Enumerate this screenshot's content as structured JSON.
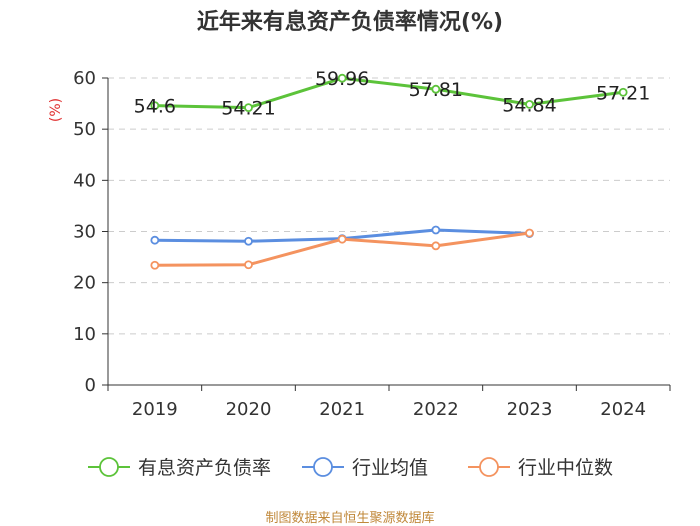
{
  "chart_data": {
    "type": "line",
    "title": "近年来有息资产负债率情况(%)",
    "ylabel": "(%)",
    "xlabel": "",
    "ylim": [
      0,
      60
    ],
    "yticks": [
      0,
      10,
      20,
      30,
      40,
      50,
      60
    ],
    "grid": true,
    "legend_position": "bottom",
    "categories": [
      "2019",
      "2020",
      "2021",
      "2022",
      "2023",
      "2024"
    ],
    "series": [
      {
        "name": "有息资产负债率",
        "color": "#5cc33a",
        "values": [
          54.6,
          54.21,
          59.96,
          57.81,
          54.84,
          57.21
        ],
        "labels": [
          "54.6",
          "54.21",
          "59.96",
          "57.81",
          "54.84",
          "57.21"
        ],
        "show_labels": true
      },
      {
        "name": "行业均值",
        "color": "#5b8ee0",
        "values": [
          28.3,
          28.1,
          28.6,
          30.3,
          29.6,
          null
        ],
        "show_labels": false
      },
      {
        "name": "行业中位数",
        "color": "#f4935f",
        "values": [
          23.4,
          23.5,
          28.5,
          27.2,
          29.7,
          null
        ],
        "show_labels": false
      }
    ],
    "source": "制图数据来自恒生聚源数据库"
  }
}
